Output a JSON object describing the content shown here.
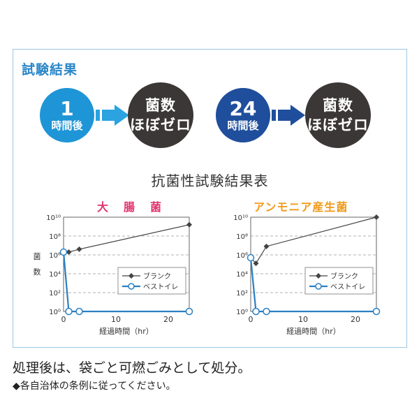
{
  "section_title": "試験結果",
  "flow": [
    {
      "time_num": "1",
      "time_unit": "時間後",
      "result_line1": "菌数",
      "result_line2": "ほぼゼロ"
    },
    {
      "time_num": "24",
      "time_unit": "時間後",
      "result_line1": "菌数",
      "result_line2": "ほぼゼロ"
    }
  ],
  "table_title": "抗菌性試験結果表",
  "colors": {
    "blue": "#1e95d6",
    "dark": "#3b3736",
    "pink": "#e0356e",
    "orange": "#f09a1a",
    "line_blue": "#2b7fc2",
    "line_dark": "#444444"
  },
  "chart_data": [
    {
      "type": "line",
      "title": "大　腸　菌",
      "title_color": "#e0356e",
      "ylabel": "菌数",
      "xlabel": "経過時間（hr）",
      "x_ticks": [
        "0",
        "10",
        "20"
      ],
      "y_ticks": [
        "10⁰",
        "10²",
        "10⁴",
        "10⁶",
        "10⁸",
        "10¹⁰"
      ],
      "xlim": [
        0,
        24
      ],
      "ylim_log10": [
        0,
        10
      ],
      "legend": "center-right",
      "series": [
        {
          "name": "ブランク",
          "x": [
            0,
            1,
            3,
            24
          ],
          "log10_y": [
            6.3,
            6.3,
            6.6,
            9.2
          ],
          "color": "#444444",
          "marker": "diamond"
        },
        {
          "name": "ベストイレ",
          "x": [
            0,
            1,
            3,
            24
          ],
          "log10_y": [
            6.3,
            0,
            0,
            0
          ],
          "color": "#2b7fc2",
          "marker": "circle"
        }
      ]
    },
    {
      "type": "line",
      "title": "アンモニア産生菌",
      "title_color": "#f09a1a",
      "ylabel": "",
      "xlabel": "経過時間（hr）",
      "x_ticks": [
        "0",
        "10",
        "20"
      ],
      "y_ticks": [
        "10⁰",
        "10²",
        "10⁴",
        "10⁶",
        "10⁸",
        "10¹⁰"
      ],
      "xlim": [
        0,
        24
      ],
      "ylim_log10": [
        0,
        10
      ],
      "legend": "center-right",
      "series": [
        {
          "name": "ブランク",
          "x": [
            0,
            1,
            3,
            24
          ],
          "log10_y": [
            5.7,
            5.1,
            6.9,
            10.0
          ],
          "color": "#444444",
          "marker": "diamond"
        },
        {
          "name": "ベストイレ",
          "x": [
            0,
            1,
            3,
            24
          ],
          "log10_y": [
            5.7,
            0,
            0,
            0
          ],
          "color": "#2b7fc2",
          "marker": "circle"
        }
      ]
    }
  ],
  "footer": {
    "line1": "処理後は、袋ごと可燃ごみとして処分。",
    "line2": "◆各自治体の条例に従ってください。"
  }
}
